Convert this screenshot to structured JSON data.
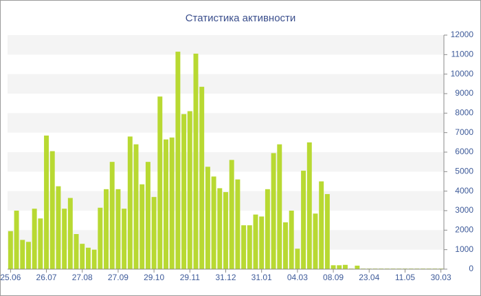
{
  "chart_data": {
    "type": "bar",
    "title": "Статистика активности",
    "categories": [
      "25.06",
      null,
      null,
      null,
      null,
      null,
      "26.07",
      null,
      null,
      null,
      null,
      null,
      "27.08",
      null,
      null,
      null,
      null,
      null,
      "27.09",
      null,
      null,
      null,
      null,
      null,
      "29.10",
      null,
      null,
      null,
      null,
      null,
      "29.11",
      null,
      null,
      null,
      null,
      null,
      "31.12",
      null,
      null,
      null,
      null,
      null,
      "31.01",
      null,
      null,
      null,
      null,
      null,
      "04.03",
      null,
      null,
      null,
      null,
      null,
      "08.09",
      null,
      null,
      null,
      null,
      null,
      "23.04",
      null,
      null,
      null,
      null,
      null,
      "11.05",
      null,
      null,
      null,
      null,
      null,
      "30.03"
    ],
    "values": [
      1950,
      3000,
      1500,
      1400,
      3100,
      2600,
      6850,
      6050,
      4250,
      3100,
      3650,
      1800,
      1300,
      1100,
      1000,
      3150,
      4100,
      5500,
      4100,
      3100,
      6800,
      6400,
      4350,
      5500,
      3700,
      8850,
      6650,
      6750,
      11150,
      7950,
      8100,
      11050,
      9350,
      5250,
      4750,
      4150,
      3950,
      5600,
      4600,
      2250,
      2250,
      2800,
      2700,
      4100,
      5950,
      6400,
      2400,
      3000,
      1050,
      5050,
      6500,
      2850,
      4500,
      3850,
      200,
      200,
      220,
      30,
      180,
      30,
      30,
      30,
      30,
      30,
      30,
      30,
      30,
      30,
      30,
      30,
      30,
      30,
      30
    ],
    "color": "#b8d932",
    "ylim": [
      0,
      12000
    ],
    "yticks": [
      0,
      1000,
      2000,
      3000,
      4000,
      5000,
      6000,
      7000,
      8000,
      9000,
      10000,
      11000,
      12000
    ],
    "grid": true
  }
}
